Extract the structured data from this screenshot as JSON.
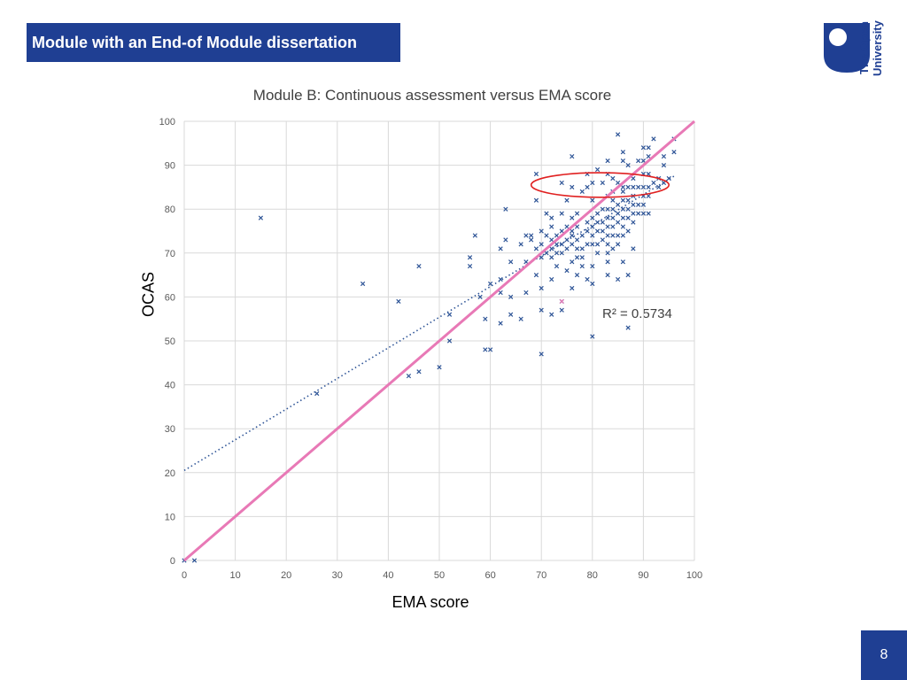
{
  "header": {
    "title": "Module with an End-of Module dissertation"
  },
  "logo": {
    "line1": "The Open",
    "line2": "University",
    "icon": "open-university-logo-icon",
    "color": "#1f3f93"
  },
  "page": {
    "number": "8"
  },
  "colors": {
    "header_bg": "#1f3f93",
    "points": "#2f5597",
    "identity_line": "#e879b6",
    "highlight_ellipse": "#e02020",
    "trendline": "#2f5597"
  },
  "chart_data": {
    "type": "scatter",
    "title": "Module B: Continuous assessment versus EMA score",
    "xlabel": "EMA score",
    "ylabel": "OCAS",
    "xlim": [
      0,
      100
    ],
    "ylim": [
      0,
      100
    ],
    "x_ticks": [
      0,
      10,
      20,
      30,
      40,
      50,
      60,
      70,
      80,
      90,
      100
    ],
    "y_ticks": [
      0,
      10,
      20,
      30,
      40,
      50,
      60,
      70,
      80,
      90,
      100
    ],
    "grid": true,
    "r_squared_label": "R² = 0.5734",
    "trendline": {
      "type": "linear",
      "from": [
        0,
        20.5
      ],
      "to": [
        96,
        87.5
      ],
      "style": "dotted"
    },
    "reference_line": {
      "from": [
        0,
        0
      ],
      "to": [
        100,
        100
      ]
    },
    "highlight": {
      "cx": 81.5,
      "cy": 85.5,
      "rx": 13.5,
      "ry": 2.8
    },
    "points": [
      [
        0,
        0
      ],
      [
        2,
        0
      ],
      [
        15,
        78
      ],
      [
        26,
        38
      ],
      [
        35,
        63
      ],
      [
        42,
        59
      ],
      [
        44,
        42
      ],
      [
        46,
        43
      ],
      [
        46,
        67
      ],
      [
        50,
        44
      ],
      [
        52,
        50
      ],
      [
        52,
        56
      ],
      [
        56,
        67
      ],
      [
        56,
        69
      ],
      [
        57,
        74
      ],
      [
        58,
        60
      ],
      [
        59,
        55
      ],
      [
        59,
        48
      ],
      [
        60,
        48
      ],
      [
        60,
        63
      ],
      [
        62,
        54
      ],
      [
        62,
        61
      ],
      [
        62,
        64
      ],
      [
        62,
        71
      ],
      [
        63,
        73
      ],
      [
        63,
        80
      ],
      [
        64,
        56
      ],
      [
        64,
        60
      ],
      [
        64,
        68
      ],
      [
        66,
        55
      ],
      [
        66,
        72
      ],
      [
        67,
        61
      ],
      [
        67,
        68
      ],
      [
        67,
        74
      ],
      [
        68,
        74
      ],
      [
        68,
        73
      ],
      [
        69,
        65
      ],
      [
        69,
        71
      ],
      [
        69,
        82
      ],
      [
        69,
        88
      ],
      [
        70,
        47
      ],
      [
        70,
        57
      ],
      [
        70,
        62
      ],
      [
        70,
        69
      ],
      [
        70,
        72
      ],
      [
        70,
        75
      ],
      [
        71,
        70
      ],
      [
        71,
        74
      ],
      [
        71,
        79
      ],
      [
        72,
        56
      ],
      [
        72,
        64
      ],
      [
        72,
        69
      ],
      [
        72,
        71
      ],
      [
        72,
        73
      ],
      [
        72,
        76
      ],
      [
        72,
        78
      ],
      [
        73,
        67
      ],
      [
        73,
        70
      ],
      [
        73,
        72
      ],
      [
        73,
        74
      ],
      [
        74,
        57
      ],
      [
        74,
        59
      ],
      [
        74,
        70
      ],
      [
        74,
        72
      ],
      [
        74,
        75
      ],
      [
        74,
        79
      ],
      [
        74,
        86
      ],
      [
        75,
        66
      ],
      [
        75,
        71
      ],
      [
        75,
        73
      ],
      [
        75,
        76
      ],
      [
        75,
        82
      ],
      [
        76,
        62
      ],
      [
        76,
        68
      ],
      [
        76,
        72
      ],
      [
        76,
        74
      ],
      [
        76,
        75
      ],
      [
        76,
        78
      ],
      [
        76,
        85
      ],
      [
        76,
        92
      ],
      [
        77,
        65
      ],
      [
        77,
        69
      ],
      [
        77,
        71
      ],
      [
        77,
        73
      ],
      [
        77,
        76
      ],
      [
        77,
        79
      ],
      [
        78,
        67
      ],
      [
        78,
        69
      ],
      [
        78,
        71
      ],
      [
        78,
        74
      ],
      [
        78,
        84
      ],
      [
        79,
        64
      ],
      [
        79,
        72
      ],
      [
        79,
        75
      ],
      [
        79,
        77
      ],
      [
        79,
        85
      ],
      [
        79,
        88
      ],
      [
        80,
        51
      ],
      [
        80,
        63
      ],
      [
        80,
        67
      ],
      [
        80,
        72
      ],
      [
        80,
        74
      ],
      [
        80,
        76
      ],
      [
        80,
        78
      ],
      [
        80,
        82
      ],
      [
        80,
        86
      ],
      [
        81,
        70
      ],
      [
        81,
        72
      ],
      [
        81,
        75
      ],
      [
        81,
        77
      ],
      [
        81,
        79
      ],
      [
        81,
        89
      ],
      [
        82,
        73
      ],
      [
        82,
        75
      ],
      [
        82,
        77
      ],
      [
        82,
        80
      ],
      [
        82,
        86
      ],
      [
        83,
        65
      ],
      [
        83,
        68
      ],
      [
        83,
        70
      ],
      [
        83,
        72
      ],
      [
        83,
        74
      ],
      [
        83,
        76
      ],
      [
        83,
        78
      ],
      [
        83,
        80
      ],
      [
        83,
        83
      ],
      [
        83,
        88
      ],
      [
        83,
        91
      ],
      [
        84,
        71
      ],
      [
        84,
        74
      ],
      [
        84,
        76
      ],
      [
        84,
        78
      ],
      [
        84,
        80
      ],
      [
        84,
        82
      ],
      [
        84,
        84
      ],
      [
        84,
        87
      ],
      [
        85,
        64
      ],
      [
        85,
        72
      ],
      [
        85,
        74
      ],
      [
        85,
        77
      ],
      [
        85,
        79
      ],
      [
        85,
        81
      ],
      [
        85,
        86
      ],
      [
        85,
        97
      ],
      [
        86,
        68
      ],
      [
        86,
        74
      ],
      [
        86,
        76
      ],
      [
        86,
        78
      ],
      [
        86,
        80
      ],
      [
        86,
        82
      ],
      [
        86,
        84
      ],
      [
        86,
        85
      ],
      [
        86,
        91
      ],
      [
        86,
        93
      ],
      [
        87,
        53
      ],
      [
        87,
        65
      ],
      [
        87,
        75
      ],
      [
        87,
        78
      ],
      [
        87,
        80
      ],
      [
        87,
        82
      ],
      [
        87,
        85
      ],
      [
        87,
        90
      ],
      [
        88,
        71
      ],
      [
        88,
        77
      ],
      [
        88,
        79
      ],
      [
        88,
        81
      ],
      [
        88,
        83
      ],
      [
        88,
        85
      ],
      [
        88,
        87
      ],
      [
        89,
        79
      ],
      [
        89,
        81
      ],
      [
        89,
        85
      ],
      [
        89,
        91
      ],
      [
        90,
        79
      ],
      [
        90,
        81
      ],
      [
        90,
        83
      ],
      [
        90,
        85
      ],
      [
        90,
        88
      ],
      [
        90,
        91
      ],
      [
        90,
        94
      ],
      [
        91,
        79
      ],
      [
        91,
        83
      ],
      [
        91,
        85
      ],
      [
        91,
        88
      ],
      [
        91,
        92
      ],
      [
        91,
        94
      ],
      [
        92,
        86
      ],
      [
        92,
        96
      ],
      [
        93,
        85
      ],
      [
        93,
        87
      ],
      [
        94,
        86
      ],
      [
        94,
        90
      ],
      [
        94,
        92
      ],
      [
        95,
        87
      ],
      [
        96,
        93
      ],
      [
        96,
        96
      ]
    ],
    "highlight_points": [
      [
        74,
        59
      ]
    ]
  }
}
